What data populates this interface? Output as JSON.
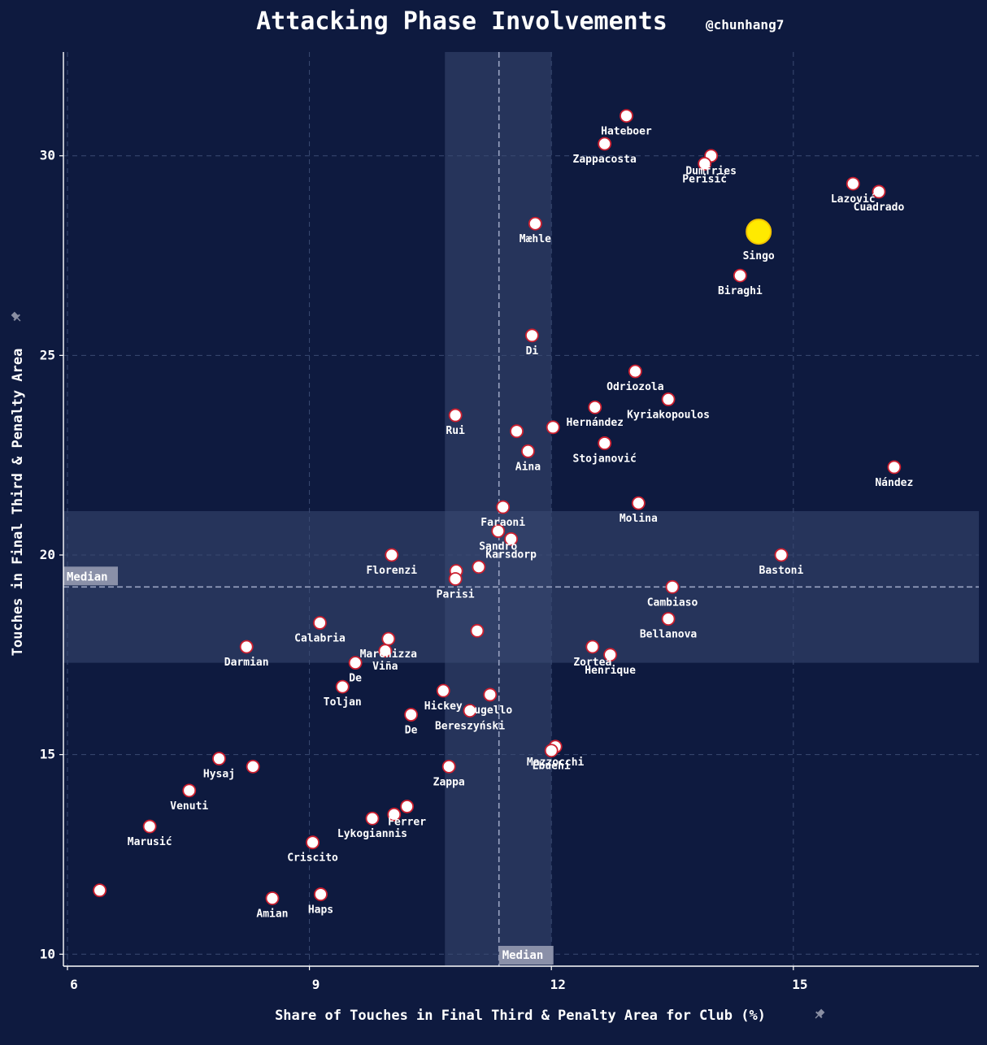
{
  "chart_data": {
    "type": "scatter",
    "title": "Attacking Phase Involvements",
    "subtitle": "@chunhang7",
    "xlabel": "Share of Touches in Final Third & Penalty Area for Club (%)",
    "ylabel": "Touches in Final Third & Penalty Area",
    "xlim": [
      5.95,
      17.3
    ],
    "ylim": [
      9.7,
      32.6
    ],
    "xticks": [
      6,
      9,
      12,
      15
    ],
    "yticks": [
      10,
      15,
      20,
      25,
      30
    ],
    "grid": true,
    "median_x": 11.35,
    "median_y": 19.2,
    "median_label": "Median",
    "iqr_x": [
      10.68,
      12.0
    ],
    "iqr_y": [
      17.3,
      21.1
    ],
    "colors": {
      "background": "#0e1a3f",
      "point_fill": "#ffffff",
      "point_edge": "#cc1f2f",
      "highlight_fill": "#ffea00",
      "highlight_edge": "#f2c300",
      "band": "#3a4a72",
      "grid": "#3a4a72",
      "median_line": "#9aa3c2",
      "axis": "#ffffff"
    },
    "points": [
      {
        "label": "Hateboer",
        "x": 12.93,
        "y": 31.0
      },
      {
        "label": "Zappacosta",
        "x": 12.66,
        "y": 30.3
      },
      {
        "label": "Dumfries",
        "x": 13.98,
        "y": 30.0
      },
      {
        "label": "Perisić",
        "x": 13.9,
        "y": 29.8
      },
      {
        "label": "Lazović",
        "x": 15.74,
        "y": 29.3
      },
      {
        "label": "Cuadrado",
        "x": 16.06,
        "y": 29.1
      },
      {
        "label": "Mæhle",
        "x": 11.8,
        "y": 28.3
      },
      {
        "label": "Singo",
        "x": 14.57,
        "y": 28.1,
        "highlight": true
      },
      {
        "label": "Biraghi",
        "x": 14.34,
        "y": 27.0
      },
      {
        "label": "Di",
        "x": 11.76,
        "y": 25.5
      },
      {
        "label": "Odriozola",
        "x": 13.04,
        "y": 24.6
      },
      {
        "label": "Kyriakopoulos",
        "x": 13.45,
        "y": 23.9
      },
      {
        "label": "Hernández",
        "x": 12.54,
        "y": 23.7
      },
      {
        "label": "Rui",
        "x": 10.81,
        "y": 23.5
      },
      {
        "label": "",
        "x": 11.57,
        "y": 23.1
      },
      {
        "label": "",
        "x": 12.02,
        "y": 23.2
      },
      {
        "label": "Stojanović",
        "x": 12.66,
        "y": 22.8
      },
      {
        "label": "Aina",
        "x": 11.71,
        "y": 22.6
      },
      {
        "label": "Nández",
        "x": 16.25,
        "y": 22.2
      },
      {
        "label": "Faraoni",
        "x": 11.4,
        "y": 21.2
      },
      {
        "label": "Molina",
        "x": 13.08,
        "y": 21.3
      },
      {
        "label": "Sandro",
        "x": 11.34,
        "y": 20.6
      },
      {
        "label": "Karsdorp",
        "x": 11.5,
        "y": 20.4
      },
      {
        "label": "Florenzi",
        "x": 10.02,
        "y": 20.0
      },
      {
        "label": "Bastoni",
        "x": 14.85,
        "y": 20.0
      },
      {
        "label": "",
        "x": 11.1,
        "y": 19.7
      },
      {
        "label": "",
        "x": 10.82,
        "y": 19.6
      },
      {
        "label": "Parisi",
        "x": 10.81,
        "y": 19.4
      },
      {
        "label": "Cambiaso",
        "x": 13.5,
        "y": 19.2
      },
      {
        "label": "Bellanova",
        "x": 13.45,
        "y": 18.4
      },
      {
        "label": "Calabria",
        "x": 9.13,
        "y": 18.3
      },
      {
        "label": "Marchizza",
        "x": 9.98,
        "y": 17.9
      },
      {
        "label": "",
        "x": 11.08,
        "y": 18.1
      },
      {
        "label": "Zortea",
        "x": 12.51,
        "y": 17.7
      },
      {
        "label": "Henrique",
        "x": 12.73,
        "y": 17.5
      },
      {
        "label": "Darmian",
        "x": 8.22,
        "y": 17.7
      },
      {
        "label": "De",
        "x": 9.57,
        "y": 17.3
      },
      {
        "label": "Viña",
        "x": 9.94,
        "y": 17.6
      },
      {
        "label": "Toljan",
        "x": 9.41,
        "y": 16.7
      },
      {
        "label": "Hickey",
        "x": 10.66,
        "y": 16.6
      },
      {
        "label": "Augello",
        "x": 11.24,
        "y": 16.5
      },
      {
        "label": "Bereszyński",
        "x": 10.99,
        "y": 16.1
      },
      {
        "label": "De",
        "x": 10.26,
        "y": 16.0
      },
      {
        "label": "Mazzocchi",
        "x": 12.05,
        "y": 15.2
      },
      {
        "label": "Ebuehi",
        "x": 12.0,
        "y": 15.1
      },
      {
        "label": "Hysaj",
        "x": 7.88,
        "y": 14.9
      },
      {
        "label": "",
        "x": 8.3,
        "y": 14.7
      },
      {
        "label": "Zappa",
        "x": 10.73,
        "y": 14.7
      },
      {
        "label": "Venuti",
        "x": 7.51,
        "y": 14.1
      },
      {
        "label": "Ferrer",
        "x": 10.21,
        "y": 13.7
      },
      {
        "label": "",
        "x": 10.05,
        "y": 13.5
      },
      {
        "label": "Lykogiannis",
        "x": 9.78,
        "y": 13.4
      },
      {
        "label": "Marusić",
        "x": 7.02,
        "y": 13.2
      },
      {
        "label": "Criscito",
        "x": 9.04,
        "y": 12.8
      },
      {
        "label": "",
        "x": 6.4,
        "y": 11.6
      },
      {
        "label": "Amian",
        "x": 8.54,
        "y": 11.4
      },
      {
        "label": "Haps",
        "x": 9.14,
        "y": 11.5
      }
    ]
  }
}
